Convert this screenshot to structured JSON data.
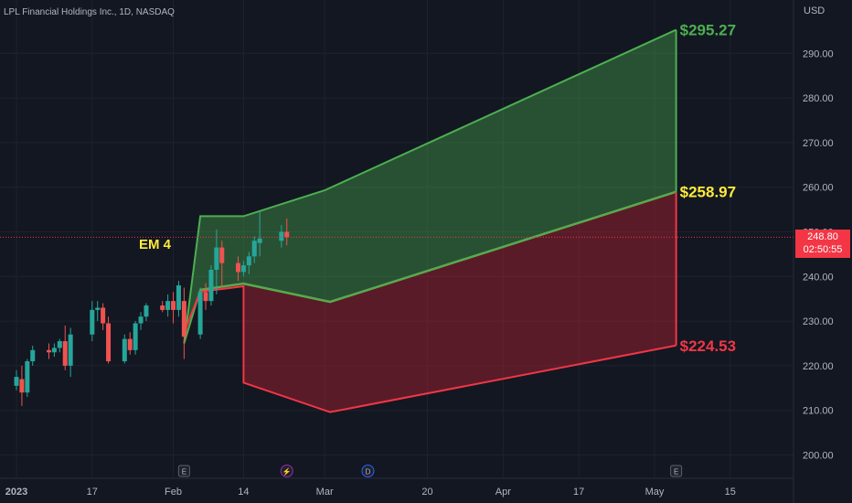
{
  "header": {
    "symbol_title": "LPL Financial Holdings Inc., 1D, NASDAQ",
    "currency": "USD"
  },
  "price_tag": {
    "price": "248.80",
    "countdown": "02:50:55"
  },
  "colors": {
    "background": "#131722",
    "up": "#26a69a",
    "down": "#ef5350",
    "green_band": "#4caf50",
    "red_band": "#f23645",
    "yellow": "#ffeb3b"
  },
  "chart_data": {
    "type": "candlestick",
    "y_axis": {
      "ticks": [
        200,
        210,
        220,
        230,
        240,
        250,
        260,
        270,
        280,
        290
      ],
      "tick_labels": [
        "200.00",
        "210.00",
        "220.00",
        "230.00",
        "240.00",
        "250.00",
        "260.00",
        "270.00",
        "280.00",
        "290.00"
      ],
      "ylim": [
        194,
        297
      ]
    },
    "x_axis": {
      "ticks": [
        {
          "label": "2023",
          "date": "2023-01-03"
        },
        {
          "label": "17",
          "date": "2023-01-17"
        },
        {
          "label": "Feb",
          "date": "2023-02-01"
        },
        {
          "label": "14",
          "date": "2023-02-14"
        },
        {
          "label": "Mar",
          "date": "2023-03-01"
        },
        {
          "label": "20",
          "date": "2023-03-20"
        },
        {
          "label": "Apr",
          "date": "2023-04-03"
        },
        {
          "label": "17",
          "date": "2023-04-17"
        },
        {
          "label": "May",
          "date": "2023-05-01"
        },
        {
          "label": "15",
          "date": "2023-05-15"
        }
      ]
    },
    "candles": [
      {
        "d": "2022-12-29",
        "o": 213.5,
        "h": 215.5,
        "l": 212.0,
        "c": 214.5
      },
      {
        "d": "2022-12-30",
        "o": 214.0,
        "h": 216.5,
        "l": 212.5,
        "c": 215.5
      },
      {
        "d": "2023-01-03",
        "o": 215.5,
        "h": 219.0,
        "l": 214.5,
        "c": 217.5
      },
      {
        "d": "2023-01-04",
        "o": 217.0,
        "h": 220.0,
        "l": 211.0,
        "c": 214.0
      },
      {
        "d": "2023-01-05",
        "o": 214.0,
        "h": 221.5,
        "l": 213.0,
        "c": 221.0
      },
      {
        "d": "2023-01-06",
        "o": 221.0,
        "h": 224.5,
        "l": 220.0,
        "c": 223.5
      },
      {
        "d": "2023-01-09",
        "o": 223.5,
        "h": 225.0,
        "l": 221.5,
        "c": 223.0
      },
      {
        "d": "2023-01-10",
        "o": 223.0,
        "h": 225.0,
        "l": 222.0,
        "c": 224.0
      },
      {
        "d": "2023-01-11",
        "o": 224.0,
        "h": 226.0,
        "l": 223.0,
        "c": 225.5
      },
      {
        "d": "2023-01-12",
        "o": 225.5,
        "h": 229.0,
        "l": 219.0,
        "c": 220.0
      },
      {
        "d": "2023-01-13",
        "o": 220.0,
        "h": 228.5,
        "l": 217.5,
        "c": 227.0
      },
      {
        "d": "2023-01-17",
        "o": 227.0,
        "h": 234.5,
        "l": 225.5,
        "c": 232.5
      },
      {
        "d": "2023-01-18",
        "o": 232.5,
        "h": 234.5,
        "l": 230.0,
        "c": 233.0
      },
      {
        "d": "2023-01-19",
        "o": 233.0,
        "h": 234.0,
        "l": 228.0,
        "c": 229.5
      },
      {
        "d": "2023-01-20",
        "o": 229.5,
        "h": 231.0,
        "l": 220.5,
        "c": 221.0
      },
      {
        "d": "2023-01-23",
        "o": 221.0,
        "h": 227.0,
        "l": 220.5,
        "c": 226.0
      },
      {
        "d": "2023-01-24",
        "o": 226.0,
        "h": 227.5,
        "l": 222.5,
        "c": 223.5
      },
      {
        "d": "2023-01-25",
        "o": 223.5,
        "h": 230.0,
        "l": 222.5,
        "c": 229.5
      },
      {
        "d": "2023-01-26",
        "o": 229.5,
        "h": 232.0,
        "l": 228.0,
        "c": 231.0
      },
      {
        "d": "2023-01-27",
        "o": 231.0,
        "h": 234.0,
        "l": 230.0,
        "c": 233.5
      },
      {
        "d": "2023-01-30",
        "o": 233.5,
        "h": 234.5,
        "l": 232.0,
        "c": 232.5
      },
      {
        "d": "2023-01-31",
        "o": 232.5,
        "h": 236.0,
        "l": 231.0,
        "c": 234.5
      },
      {
        "d": "2023-02-01",
        "o": 234.5,
        "h": 236.5,
        "l": 229.5,
        "c": 232.5
      },
      {
        "d": "2023-02-02",
        "o": 232.5,
        "h": 239.0,
        "l": 231.0,
        "c": 238.0
      },
      {
        "d": "2023-02-03",
        "o": 234.5,
        "h": 237.5,
        "l": 221.5,
        "c": 226.5
      },
      {
        "d": "2023-02-06",
        "o": 227.0,
        "h": 237.5,
        "l": 226.0,
        "c": 236.5
      },
      {
        "d": "2023-02-07",
        "o": 236.5,
        "h": 238.5,
        "l": 232.5,
        "c": 234.5
      },
      {
        "d": "2023-02-08",
        "o": 234.5,
        "h": 242.5,
        "l": 233.5,
        "c": 241.5
      },
      {
        "d": "2023-02-09",
        "o": 241.5,
        "h": 250.5,
        "l": 236.0,
        "c": 246.5
      },
      {
        "d": "2023-02-10",
        "o": 246.5,
        "h": 248.0,
        "l": 237.5,
        "c": 243.0
      },
      {
        "d": "2023-02-13",
        "o": 243.0,
        "h": 244.5,
        "l": 239.0,
        "c": 241.0
      },
      {
        "d": "2023-02-14",
        "o": 241.0,
        "h": 243.5,
        "l": 240.0,
        "c": 242.5
      },
      {
        "d": "2023-02-15",
        "o": 242.5,
        "h": 245.5,
        "l": 240.5,
        "c": 244.5
      },
      {
        "d": "2023-02-16",
        "o": 244.5,
        "h": 249.0,
        "l": 243.0,
        "c": 248.0
      },
      {
        "d": "2023-02-17",
        "o": 247.5,
        "h": 254.5,
        "l": 244.5,
        "c": 248.5
      },
      {
        "d": "2023-02-21",
        "o": 248.0,
        "h": 251.5,
        "l": 246.5,
        "c": 250.0
      },
      {
        "d": "2023-02-22",
        "o": 250.0,
        "h": 253.0,
        "l": 247.0,
        "c": 248.8
      }
    ],
    "current_price": 248.8,
    "bands": {
      "upper_outer": [
        {
          "d": "2023-02-03",
          "v": 225.0
        },
        {
          "d": "2023-02-06",
          "v": 253.5
        },
        {
          "d": "2023-02-14",
          "v": 253.5
        },
        {
          "d": "2023-03-01",
          "v": 259.3
        },
        {
          "d": "2023-05-05",
          "v": 295.27
        }
      ],
      "middle": [
        {
          "d": "2023-02-03",
          "v": 225.0
        },
        {
          "d": "2023-02-06",
          "v": 237.0
        },
        {
          "d": "2023-02-14",
          "v": 238.4
        },
        {
          "d": "2023-03-02",
          "v": 234.3
        },
        {
          "d": "2023-05-05",
          "v": 258.97
        }
      ],
      "lower": [
        {
          "d": "2023-02-03",
          "v": 227.5
        },
        {
          "d": "2023-02-06",
          "v": 236.6
        },
        {
          "d": "2023-02-14",
          "v": 237.8
        },
        {
          "d": "2023-02-14",
          "v": 216.2
        },
        {
          "d": "2023-03-02",
          "v": 209.6
        },
        {
          "d": "2023-05-05",
          "v": 224.53
        }
      ]
    },
    "band_labels": [
      {
        "text": "$295.27",
        "value": 295.27,
        "color": "#4caf50"
      },
      {
        "text": "$258.97",
        "value": 258.97,
        "color": "#ffeb3b"
      },
      {
        "text": "$224.53",
        "value": 224.53,
        "color": "#f23645"
      }
    ],
    "annotation": {
      "text": "EM 4",
      "color": "#ffeb3b"
    },
    "event_markers": [
      {
        "d": "2023-02-03",
        "icon": "E",
        "type": "earnings"
      },
      {
        "d": "2023-02-22",
        "icon": "⚡",
        "type": "split"
      },
      {
        "d": "2023-03-09",
        "icon": "D",
        "type": "dividend"
      },
      {
        "d": "2023-05-05",
        "icon": "E",
        "type": "earnings"
      }
    ]
  }
}
